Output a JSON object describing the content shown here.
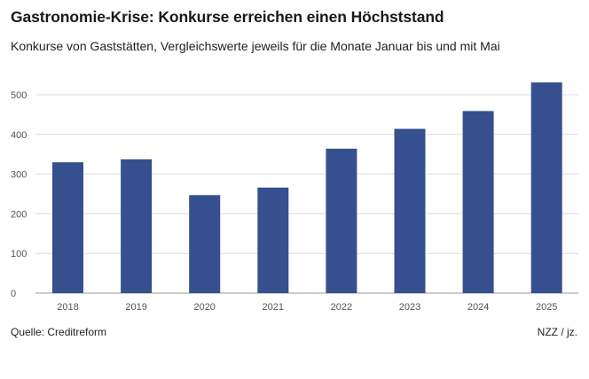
{
  "chart_data": {
    "type": "bar",
    "title": "Gastronomie-Krise: Konkurse erreichen einen Höchststand",
    "subtitle": "Konkurse von Gaststätten, Vergleichswerte jeweils für die Monate Januar bis und mit Mai",
    "categories": [
      "2018",
      "2019",
      "2020",
      "2021",
      "2022",
      "2023",
      "2024",
      "2025"
    ],
    "values": [
      330,
      337,
      247,
      266,
      364,
      414,
      459,
      531
    ],
    "ylim": [
      0,
      560
    ],
    "yticks": [
      0,
      100,
      200,
      300,
      400,
      500
    ],
    "grid": true,
    "bar_color": "#364f8f"
  },
  "footer": {
    "source": "Quelle: Creditreform",
    "credit": "NZZ / jz."
  }
}
